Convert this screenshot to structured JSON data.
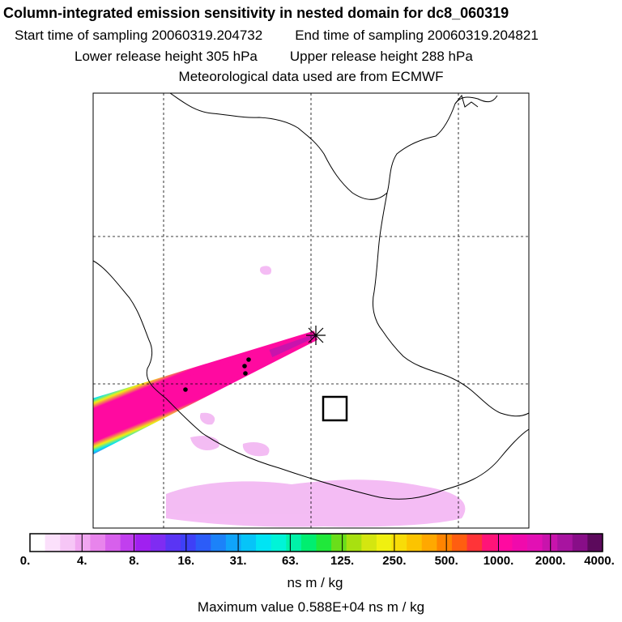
{
  "header": {
    "title": "Column-integrated emission sensitivity in nested domain for dc8_060319",
    "start_time": "Start time of sampling 20060319.204732",
    "end_time": "End time of sampling 20060319.204821",
    "lower_height": "Lower release height  305 hPa",
    "upper_height": "Upper release height  288 hPa",
    "met_data": "Meteorological data used are from ECMWF"
  },
  "colorbar": {
    "tick_labels": [
      "0.",
      "4.",
      "8.",
      "16.",
      "31.",
      "63.",
      "125.",
      "250.",
      "500.",
      "1000.",
      "2000.",
      "4000."
    ],
    "colors": [
      "#ffffff",
      "#fbe0fb",
      "#f6c6f6",
      "#f0a6f0",
      "#e884ec",
      "#d760ec",
      "#c13fee",
      "#a020f0",
      "#7f2cf2",
      "#5a35f4",
      "#3e40f7",
      "#2c5cf8",
      "#1c82f9",
      "#10a4fa",
      "#06c4f8",
      "#00e4f4",
      "#00f4d8",
      "#00f2a8",
      "#00ee70",
      "#20e83a",
      "#6ade1a",
      "#a8e010",
      "#d4e610",
      "#f0f010",
      "#f8dc08",
      "#fcc400",
      "#ffa800",
      "#ff8400",
      "#ff5e10",
      "#ff3438",
      "#ff1478",
      "#ff0aa0",
      "#f00aac",
      "#e210b4",
      "#c814ac",
      "#a814a0",
      "#880e88",
      "#5c0a5c"
    ],
    "unit": "ns m / kg",
    "max_value": "Maximum value  0.588E+04 ns m / kg"
  },
  "chart_data": {
    "type": "heatmap",
    "title": "Column-integrated emission sensitivity in nested domain for dc8_060319",
    "variable": "Column-integrated emission sensitivity",
    "unit": "ns m / kg",
    "color_scale_breaks": [
      0,
      4,
      8,
      16,
      31,
      63,
      125,
      250,
      500,
      1000,
      2000,
      4000
    ],
    "max_value": 5880,
    "receptor_marker": "star at the upstream end of the sensitivity plume",
    "plume": "narrow high-sensitivity band extending from the receptor toward the lower-left edge of the domain",
    "grid": true,
    "legend": "bottom"
  }
}
